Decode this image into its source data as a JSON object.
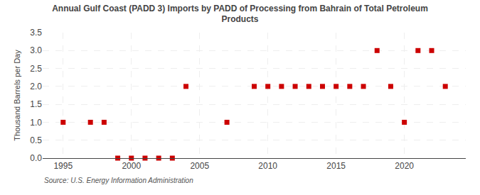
{
  "chart_data": {
    "type": "scatter",
    "title": "Annual Gulf Coast (PADD 3) Imports by PADD of Processing from Bahrain of Total Petroleum\nProducts",
    "ylabel": "Thousand Barrels per Day",
    "annotations": [
      "Source: U.S. Energy Information Administration"
    ],
    "x": [
      1995,
      1997,
      1998,
      1999,
      2000,
      2001,
      2002,
      2003,
      2004,
      2007,
      2009,
      2010,
      2011,
      2012,
      2013,
      2014,
      2015,
      2016,
      2017,
      2018,
      2019,
      2020,
      2021,
      2022,
      2023
    ],
    "values": [
      1.0,
      1.0,
      1.0,
      0.0,
      0.0,
      0.0,
      0.0,
      0.0,
      2.0,
      1.0,
      2.0,
      2.0,
      2.0,
      2.0,
      2.0,
      2.0,
      2.0,
      2.0,
      2.0,
      3.0,
      2.0,
      1.0,
      3.0,
      3.0,
      2.0
    ],
    "color": "#cc0000",
    "marker": "square",
    "xlim": [
      1993.5,
      2024.5
    ],
    "ylim": [
      0.0,
      3.5
    ],
    "xticks": [
      1995,
      2000,
      2005,
      2010,
      2015,
      2020
    ],
    "yticks": [
      {
        "value": 0.0,
        "label": "0.0"
      },
      0.5,
      {
        "value": 1.0,
        "label": "1.0"
      },
      1.5,
      {
        "value": 2.0,
        "label": "2.0"
      },
      2.5,
      {
        "value": 3.0,
        "label": "3.0"
      },
      3.5
    ],
    "grid": true
  }
}
